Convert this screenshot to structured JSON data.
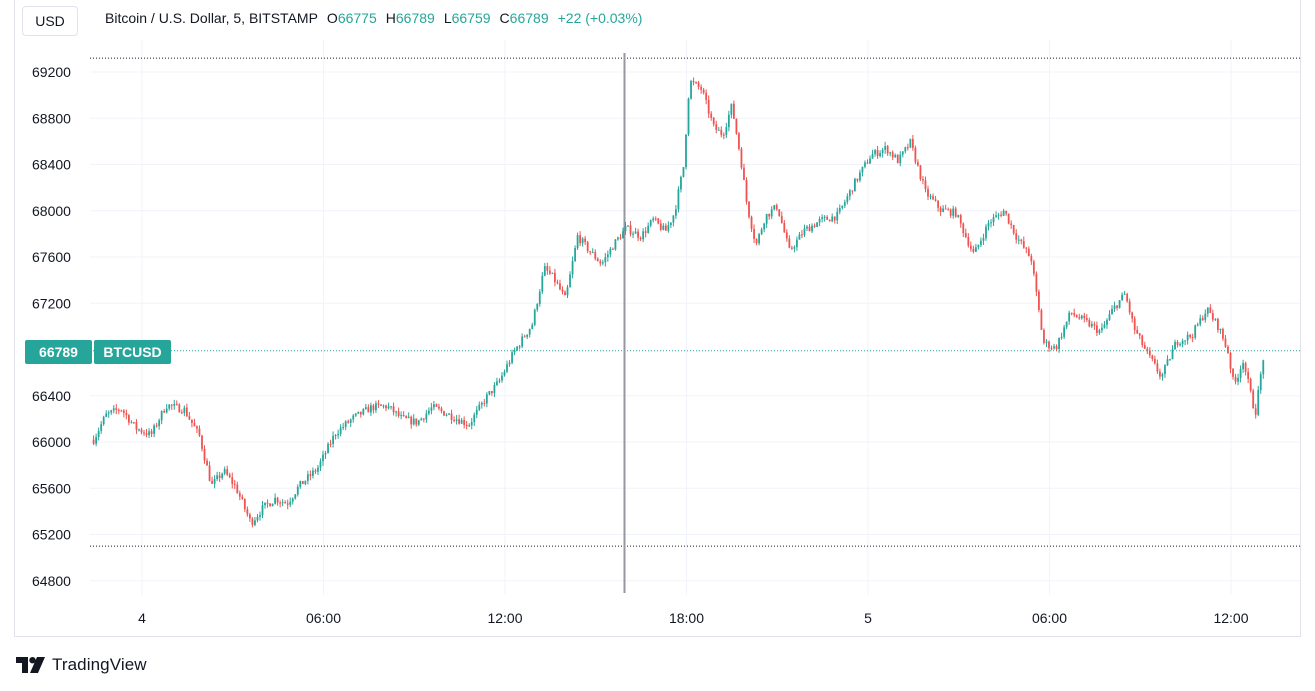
{
  "header": {
    "currency": "USD",
    "symbol_title": "Bitcoin / U.S. Dollar, 5, BITSTAMP",
    "ohlc": {
      "o_label": "O",
      "o": "66775",
      "h_label": "H",
      "h": "66789",
      "l_label": "L",
      "l": "66759",
      "c_label": "C",
      "c": "66789",
      "change": "+22 (+0.03%)"
    }
  },
  "price_badge": {
    "value": "66789",
    "ticker": "BTCUSD"
  },
  "branding": {
    "name": "TradingView"
  },
  "colors": {
    "up": "#26a69a",
    "down": "#ef5350",
    "grid": "#f0f3fa",
    "axis_text": "#131722",
    "crosshair": "#9598a1"
  },
  "chart_data": {
    "type": "candlestick",
    "title": "Bitcoin / U.S. Dollar, 5, BITSTAMP",
    "y_ticks": [
      69200,
      68800,
      68400,
      68000,
      67600,
      67200,
      66400,
      66000,
      65600,
      65200,
      64800
    ],
    "x_ticks": [
      "4",
      "06:00",
      "12:00",
      "18:00",
      "5",
      "06:00",
      "12:00"
    ],
    "x_tick_hours": [
      0,
      6,
      12,
      18,
      24,
      30,
      36
    ],
    "ylim": [
      64650,
      69350
    ],
    "xlim_hours": [
      -1.6,
      38.3
    ],
    "last_price": 66789,
    "crosshair_hour": 15.95,
    "range_high": 69320,
    "range_low": 65100,
    "grid": true,
    "path_hours": [
      -1.6,
      -1.2,
      -0.7,
      -0.2,
      0.3,
      0.8,
      1.4,
      1.9,
      2.3,
      2.7,
      3.1,
      3.6,
      4.0,
      4.4,
      4.8,
      5.2,
      5.8,
      6.4,
      7.0,
      7.6,
      8.1,
      8.6,
      9.1,
      9.6,
      10.2,
      10.8,
      11.4,
      11.8,
      12.3,
      12.9,
      13.3,
      13.6,
      14.0,
      14.4,
      14.8,
      15.2,
      15.6,
      16.0,
      16.5,
      16.9,
      17.3,
      17.6,
      17.9,
      18.1,
      18.5,
      18.9,
      19.2,
      19.5,
      19.8,
      20.0,
      20.3,
      20.6,
      21.0,
      21.4,
      21.9,
      22.4,
      23.0,
      23.6,
      24.1,
      24.6,
      25.0,
      25.4,
      25.9,
      26.4,
      26.9,
      27.5,
      28.0,
      28.5,
      28.9,
      29.4,
      29.8,
      30.2,
      30.7,
      31.3,
      31.7,
      32.1,
      32.5,
      32.8,
      33.2,
      33.7,
      34.2,
      34.7,
      35.2,
      35.6,
      35.9,
      36.1,
      36.4,
      36.8,
      37.1
    ],
    "path_values": [
      66020,
      66230,
      66290,
      66120,
      66060,
      66320,
      66280,
      66050,
      65620,
      65750,
      65610,
      65300,
      65430,
      65510,
      65470,
      65620,
      65770,
      66080,
      66210,
      66300,
      66310,
      66200,
      66170,
      66300,
      66230,
      66150,
      66390,
      66520,
      66780,
      67020,
      67500,
      67420,
      67230,
      67780,
      67650,
      67540,
      67710,
      67850,
      67780,
      67920,
      67820,
      67980,
      68380,
      69120,
      69050,
      68720,
      68660,
      68910,
      68440,
      68050,
      67700,
      67950,
      68040,
      67650,
      67830,
      67910,
      67960,
      68260,
      68480,
      68540,
      68430,
      68590,
      68160,
      68010,
      67980,
      67620,
      67900,
      68000,
      67780,
      67580,
      66860,
      66810,
      67120,
      67020,
      66950,
      67150,
      67280,
      66980,
      66780,
      66560,
      66870,
      66920,
      67150,
      66990,
      66780,
      66480,
      66710,
      66240,
      66789
    ]
  }
}
